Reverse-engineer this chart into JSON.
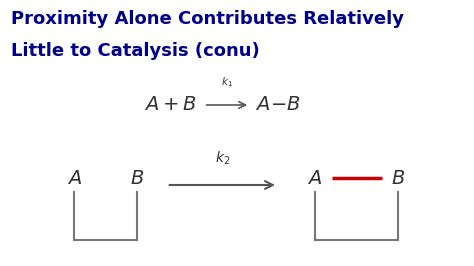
{
  "title_line1": "Proximity Alone Contributes Relatively",
  "title_line2": "Little to Catalysis (conu)",
  "title_color": "#00008B",
  "bg_color": "#FFFFFF",
  "k1_label": "$k_1$",
  "k2_label": "$k_2$",
  "arrow_color": "#555555",
  "bond_color": "#CC0000",
  "text_color": "#333333",
  "box_color": "#777777"
}
